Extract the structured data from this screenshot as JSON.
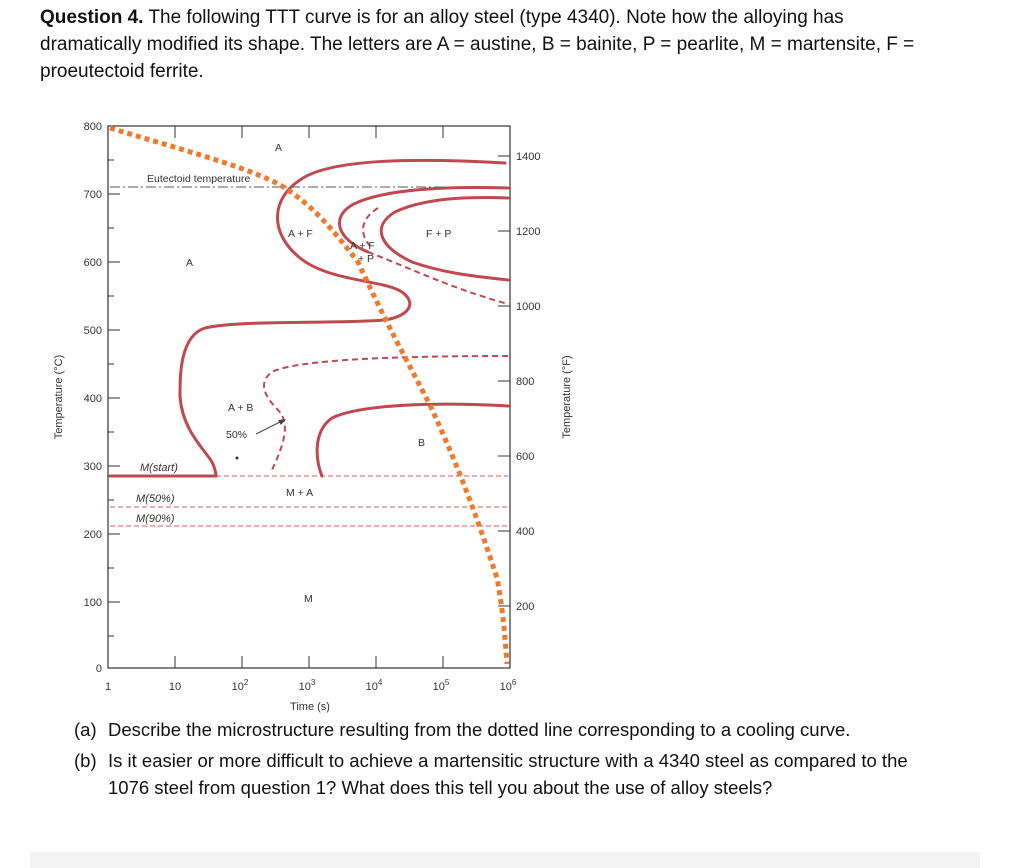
{
  "question": {
    "number_label": "Question 4.",
    "text": "The following TTT curve is for an alloy steel (type 4340). Note how the alloying has dramatically modified its shape. The letters are A = austine, B = bainite, P = pearlite, M = martensite, F = proeutectoid ferrite."
  },
  "diagram": {
    "left_axis_label": "Temperature (°C)",
    "right_axis_label": "Temperature (°F)",
    "x_axis_label": "Time (s)",
    "left_ticks": [
      "800",
      "700",
      "600",
      "500",
      "400",
      "300",
      "200",
      "100",
      "0"
    ],
    "right_ticks": [
      "1400",
      "1200",
      "1000",
      "800",
      "600",
      "400",
      "200"
    ],
    "x_ticks": [
      "1",
      "10",
      "10",
      "10",
      "10",
      "10",
      "10"
    ],
    "x_tick_exponents": [
      "",
      "",
      "2",
      "3",
      "4",
      "5",
      "6"
    ],
    "region_labels": {
      "a_top": "A",
      "eutectoid": "Eutectoid temperature",
      "a_plus_f": "A + F",
      "a_plus_f_p_line1": "A + F",
      "a_plus_f_p_line2": "+ P",
      "f_plus_p": "F + P",
      "a_mid": "A",
      "a_plus_b": "A + B",
      "fifty_percent": "50%",
      "b": "B",
      "m_start": "M(start)",
      "m_50": "M(50%)",
      "m_90": "M(90%)",
      "m_plus_a": "M + A",
      "m": "M"
    },
    "colors": {
      "curve": "#c0484f",
      "dashed_line": "#e07a80",
      "cooling_path": "#ee7a2c",
      "axis": "#333333"
    }
  },
  "answers": [
    {
      "label": "(a)",
      "text": "Describe the microstructure resulting from the dotted line corresponding to a cooling curve."
    },
    {
      "label": "(b)",
      "text": "Is it easier or more difficult to achieve a martensitic structure with a 4340 steel as compared to the 1076 steel from question 1? What does this tell you about the use of alloy steels?"
    }
  ]
}
